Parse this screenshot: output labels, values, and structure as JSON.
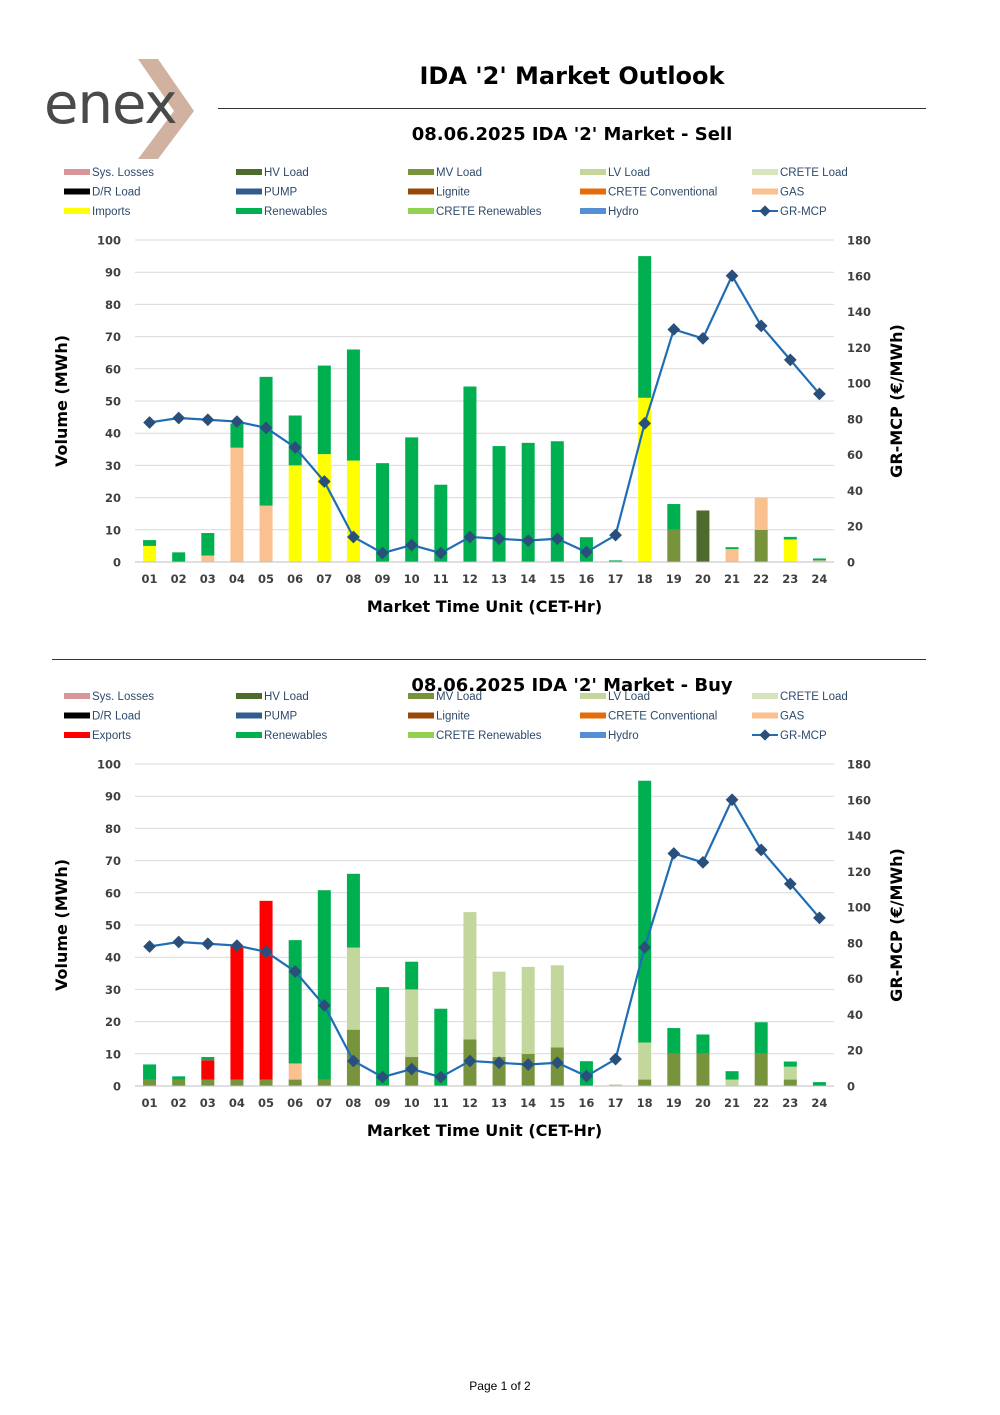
{
  "header": {
    "logo_text": "enex",
    "title": "IDA '2' Market Outlook"
  },
  "colors": {
    "Sys. Losses": "#d9969a",
    "HV Load": "#4e6b2e",
    "MV Load": "#77933c",
    "LV Load": "#c3d69b",
    "CRETE Load": "#d7e4bd",
    "D/R Load": "#000000",
    "PUMP": "#2f5d8e",
    "Lignite": "#984807",
    "CRETE Conventional": "#e46c0a",
    "GAS": "#fac090",
    "Imports": "#ffff00",
    "Exports": "#ff0000",
    "Renewables": "#00b050",
    "CRETE Renewables": "#92d050",
    "Hydro": "#558ed5",
    "GR-MCP": "#1f6eb5",
    "GR-MCP marker": "#2a4f7a"
  },
  "chart_data": [
    {
      "type": "bar",
      "title": "08.06.2025  IDA '2' Market - Sell",
      "xlabel": "Market Time Unit (CET-Hr)",
      "ylabel": "Volume (MWh)",
      "y2label": "GR-MCP (€/MWh)",
      "ylim": [
        0,
        100
      ],
      "y2lim": [
        0,
        180
      ],
      "yticks": [
        0,
        10,
        20,
        30,
        40,
        50,
        60,
        70,
        80,
        90,
        100
      ],
      "y2ticks": [
        0,
        20,
        40,
        60,
        80,
        100,
        120,
        140,
        160,
        180
      ],
      "stacked": true,
      "grid": true,
      "legend_position": "top",
      "legend": [
        "Sys. Losses",
        "HV Load",
        "MV Load",
        "LV Load",
        "CRETE Load",
        "D/R Load",
        "PUMP",
        "Lignite",
        "CRETE Conventional",
        "GAS",
        "Imports",
        "Renewables",
        "CRETE Renewables",
        "Hydro",
        "GR-MCP"
      ],
      "categories": [
        "01",
        "02",
        "03",
        "04",
        "05",
        "06",
        "07",
        "08",
        "09",
        "10",
        "11",
        "12",
        "13",
        "14",
        "15",
        "16",
        "17",
        "18",
        "19",
        "20",
        "21",
        "22",
        "23",
        "24"
      ],
      "series": [
        {
          "name": "HV Load",
          "axis": "left",
          "values": [
            0,
            0,
            0,
            0,
            0,
            0,
            0,
            0,
            0,
            0,
            0,
            0,
            0,
            0,
            0,
            0,
            0,
            0,
            0,
            16,
            0,
            0,
            0,
            0
          ]
        },
        {
          "name": "MV Load",
          "axis": "left",
          "values": [
            0,
            0,
            0,
            0,
            0,
            0,
            0,
            0,
            0,
            0,
            0,
            0,
            0,
            0,
            0,
            0,
            0,
            0,
            10,
            0,
            0,
            10,
            0,
            0
          ]
        },
        {
          "name": "GAS",
          "axis": "left",
          "values": [
            0,
            0,
            2,
            35.5,
            17.5,
            0,
            0,
            0,
            0,
            0,
            0,
            0,
            0,
            0,
            0,
            0,
            0,
            0,
            0,
            0,
            4,
            10,
            0,
            0.5
          ]
        },
        {
          "name": "Imports",
          "axis": "left",
          "values": [
            5,
            0,
            0,
            0,
            0,
            30,
            33.5,
            31.5,
            0,
            0,
            0,
            0,
            0,
            0,
            0,
            0,
            0,
            51,
            0,
            0,
            0,
            0,
            7,
            0
          ]
        },
        {
          "name": "Renewables",
          "axis": "left",
          "values": [
            1.8,
            3,
            7,
            7.5,
            40,
            15.5,
            27.5,
            34.5,
            30.7,
            38.7,
            24,
            54.5,
            36,
            37,
            37.5,
            7.7,
            0.5,
            44,
            8,
            0,
            0.6,
            0,
            0.8,
            0.6
          ]
        },
        {
          "name": "GR-MCP",
          "axis": "right",
          "type": "line",
          "values": [
            78,
            80.5,
            79.5,
            78.5,
            75,
            64,
            45,
            14,
            5,
            9.5,
            5,
            14,
            13,
            12,
            13,
            5.5,
            15,
            77.5,
            130,
            125,
            160,
            132,
            113,
            94
          ]
        }
      ]
    },
    {
      "type": "bar",
      "title": "08.06.2025  IDA '2' Market - Buy",
      "xlabel": "Market Time Unit (CET-Hr)",
      "ylabel": "Volume (MWh)",
      "y2label": "GR-MCP (€/MWh)",
      "ylim": [
        0,
        100
      ],
      "y2lim": [
        0,
        180
      ],
      "yticks": [
        0,
        10,
        20,
        30,
        40,
        50,
        60,
        70,
        80,
        90,
        100
      ],
      "y2ticks": [
        0,
        20,
        40,
        60,
        80,
        100,
        120,
        140,
        160,
        180
      ],
      "stacked": true,
      "grid": true,
      "legend_position": "top",
      "legend": [
        "Sys. Losses",
        "HV Load",
        "MV Load",
        "LV Load",
        "CRETE Load",
        "D/R Load",
        "PUMP",
        "Lignite",
        "CRETE Conventional",
        "GAS",
        "Exports",
        "Renewables",
        "CRETE Renewables",
        "Hydro",
        "GR-MCP"
      ],
      "categories": [
        "01",
        "02",
        "03",
        "04",
        "05",
        "06",
        "07",
        "08",
        "09",
        "10",
        "11",
        "12",
        "13",
        "14",
        "15",
        "16",
        "17",
        "18",
        "19",
        "20",
        "21",
        "22",
        "23",
        "24"
      ],
      "series": [
        {
          "name": "MV Load",
          "axis": "left",
          "values": [
            2,
            2,
            2,
            2,
            2,
            2,
            2,
            17.5,
            0,
            9,
            0,
            14.5,
            9,
            10,
            12,
            0,
            0,
            2,
            10,
            10,
            0,
            10,
            2,
            0
          ]
        },
        {
          "name": "LV Load",
          "axis": "left",
          "values": [
            0,
            0,
            0,
            0,
            0,
            0,
            0,
            25.5,
            0,
            21,
            0,
            39.5,
            26.5,
            27,
            25.5,
            0,
            0.5,
            11.5,
            0,
            0,
            2,
            0,
            4,
            0
          ]
        },
        {
          "name": "GAS",
          "axis": "left",
          "values": [
            0,
            0,
            0,
            0,
            0,
            5,
            0,
            0,
            0,
            0,
            0,
            0,
            0,
            0,
            0,
            0,
            0,
            0,
            0,
            0,
            0,
            0,
            0,
            0
          ]
        },
        {
          "name": "Exports",
          "axis": "left",
          "values": [
            0,
            0,
            6,
            41.5,
            55.5,
            0,
            0,
            0,
            0,
            0,
            0,
            0,
            0,
            0,
            0,
            0,
            0,
            0,
            0,
            0,
            0,
            0,
            0,
            0
          ]
        },
        {
          "name": "Renewables",
          "axis": "left",
          "values": [
            4.7,
            1,
            1,
            0,
            0,
            38.3,
            58.8,
            22.9,
            30.7,
            8.6,
            24,
            0,
            0,
            0,
            0,
            7.7,
            0,
            81.3,
            8,
            6,
            2.6,
            9.8,
            1.6,
            1.2
          ]
        },
        {
          "name": "GR-MCP",
          "axis": "right",
          "type": "line",
          "values": [
            78,
            80.5,
            79.5,
            78.5,
            75,
            64,
            45,
            14,
            5,
            9.5,
            5,
            14,
            13,
            12,
            13,
            5.5,
            15,
            77.5,
            130,
            125,
            160,
            132,
            113,
            94
          ]
        }
      ]
    }
  ],
  "footer": {
    "page": "Page 1 of 2"
  }
}
